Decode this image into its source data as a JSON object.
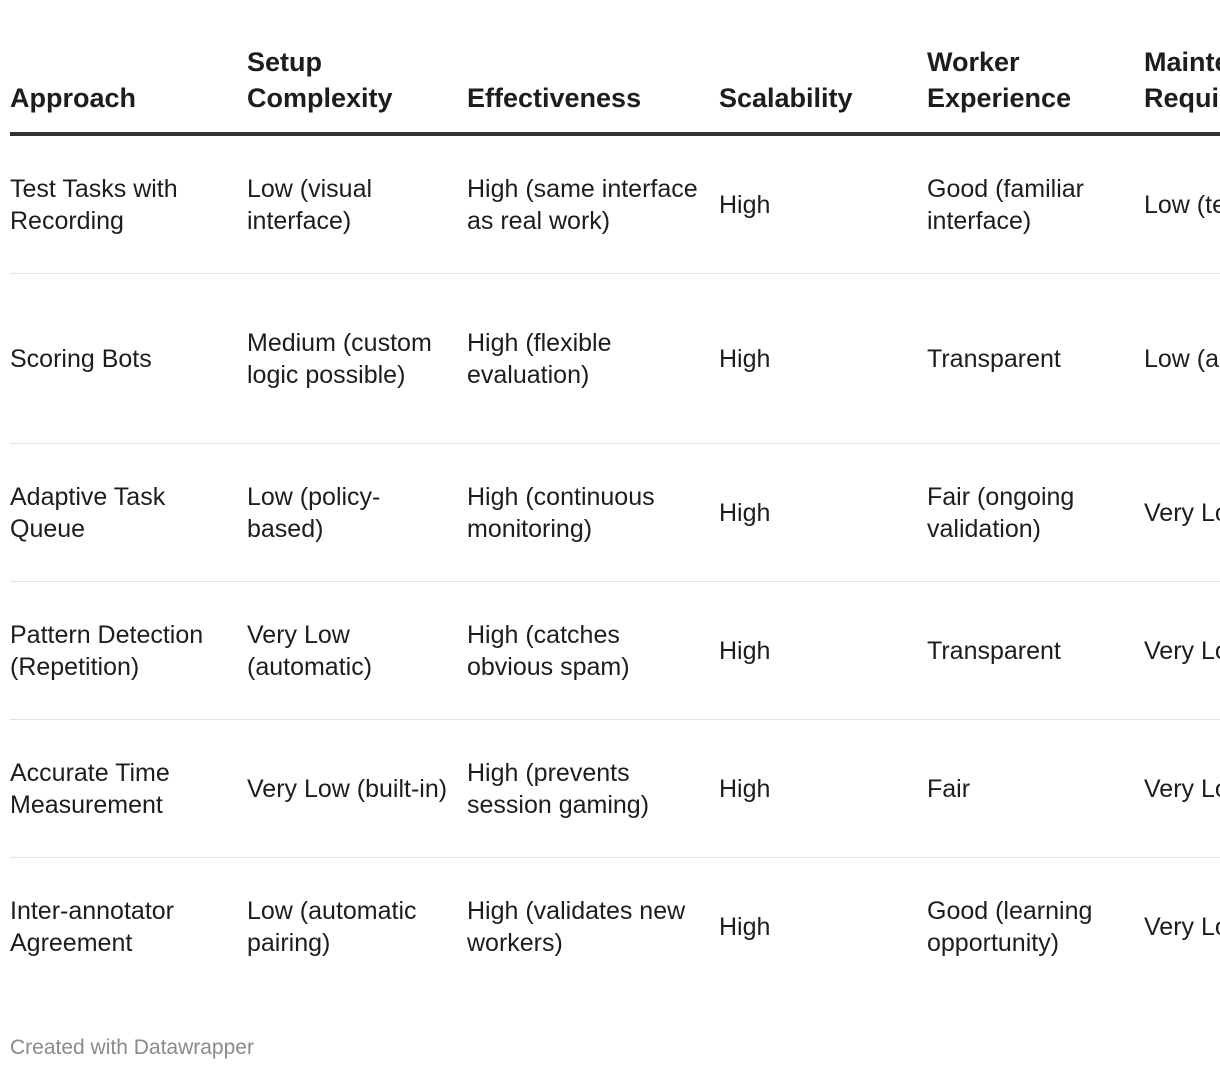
{
  "chart_data": {
    "type": "table",
    "columns": [
      "Approach",
      "Setup Complexity",
      "Effectiveness",
      "Scalability",
      "Worker Experience",
      "Maintenance Requirements"
    ],
    "rows": [
      [
        "Test Tasks with Recording",
        "Low (visual interface)",
        "High (same interface as real work)",
        "High",
        "Good (familiar interface)",
        "Low (test generation)"
      ],
      [
        "Scoring Bots",
        "Medium (custom logic possible)",
        "High (flexible evaluation)",
        "High",
        "Transparent",
        "Low (automated)"
      ],
      [
        "Adaptive Task Queue",
        "Low (policy-based)",
        "High (continuous monitoring)",
        "High",
        "Fair (ongoing validation)",
        "Very Low (automated)"
      ],
      [
        "Pattern Detection (Repetition)",
        "Very Low (automatic)",
        "High (catches obvious spam)",
        "High",
        "Transparent",
        "Very Low (automated)"
      ],
      [
        "Accurate Time Measurement",
        "Very Low (built-in)",
        "High (prevents session gaming)",
        "High",
        "Fair",
        "Very Low (automated)"
      ],
      [
        "Inter-annotator Agreement",
        "Low (automatic pairing)",
        "High (validates new workers)",
        "High",
        "Good (learning opportunity)",
        "Very Low (automated)"
      ]
    ]
  },
  "footer": {
    "credit": "Created with Datawrapper"
  }
}
